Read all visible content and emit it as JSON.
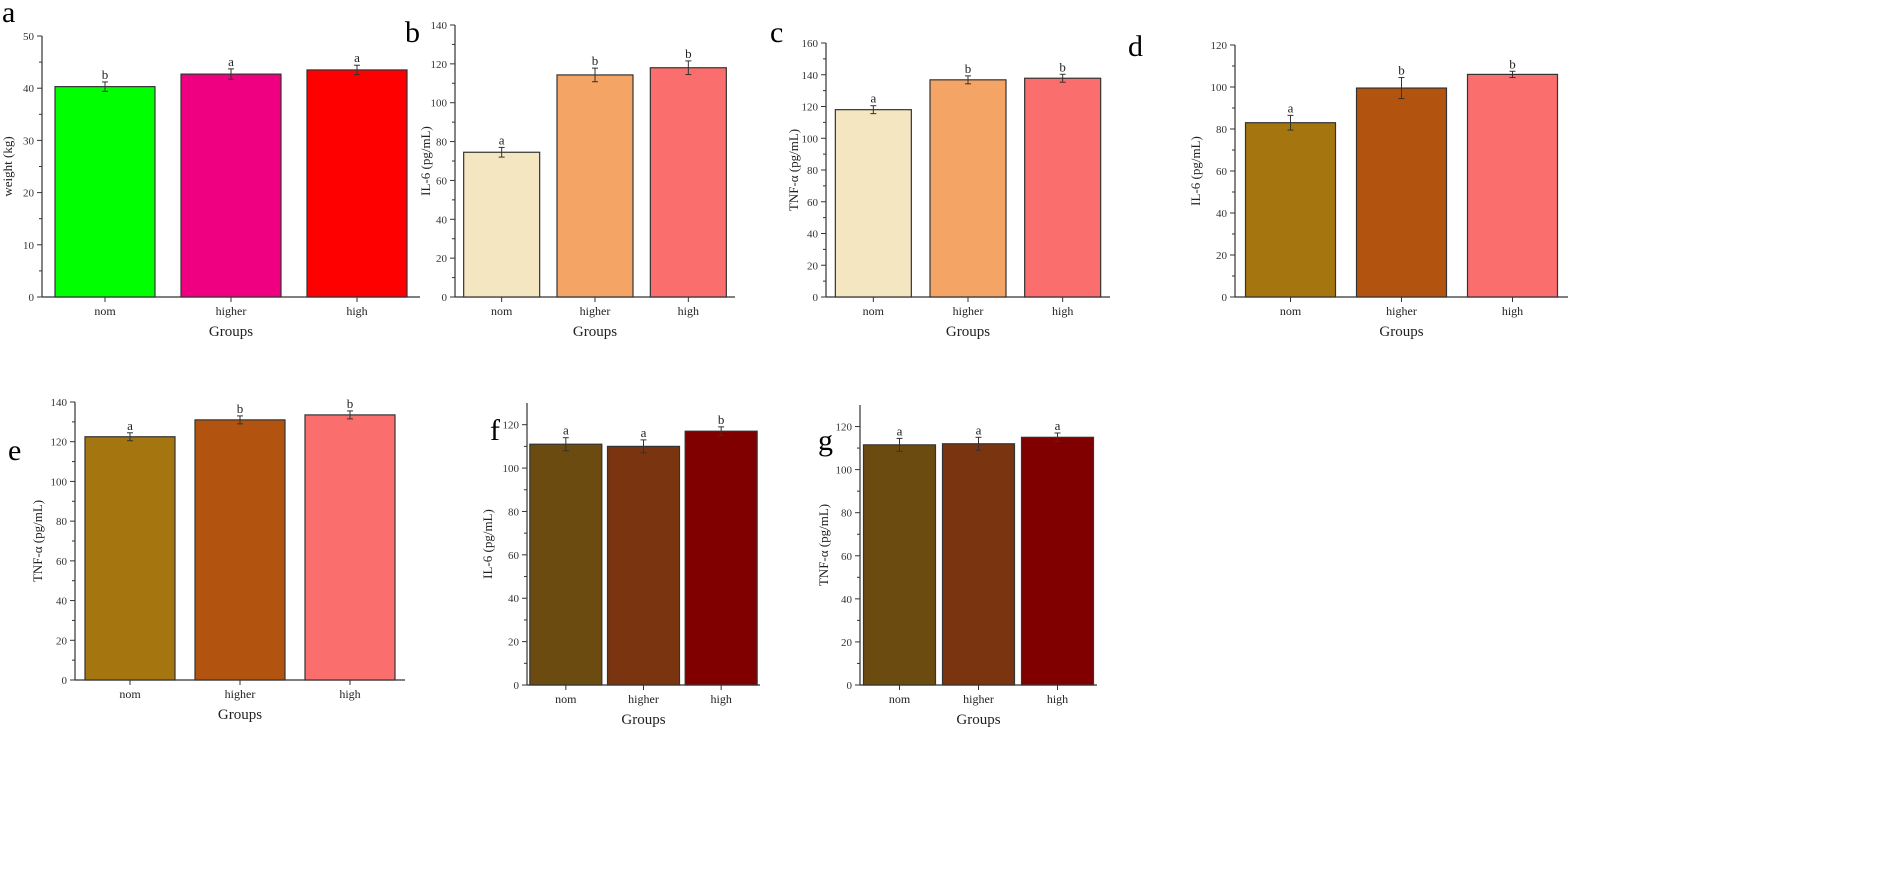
{
  "chart_data": [
    {
      "panel": "a",
      "type": "bar",
      "categories": [
        "nom",
        "higher",
        "high"
      ],
      "values": [
        40.3,
        42.7,
        43.5
      ],
      "errors": [
        0.9,
        1.0,
        0.9
      ],
      "significance": [
        "b",
        "a",
        "a"
      ],
      "colors": [
        "#00ff00",
        "#ee0080",
        "#ff0000"
      ],
      "xlabel": "Groups",
      "ylabel": "weight (kg)",
      "ylim": [
        0,
        50
      ],
      "yticks": [
        0,
        10,
        20,
        30,
        40,
        50
      ],
      "grid": false
    },
    {
      "panel": "b",
      "type": "bar",
      "categories": [
        "nom",
        "higher",
        "high"
      ],
      "values": [
        74.5,
        114.3,
        118
      ],
      "errors": [
        2.5,
        3.5,
        3.5
      ],
      "significance": [
        "a",
        "b",
        "b"
      ],
      "colors": [
        "#f5e6c2",
        "#f4a464",
        "#fa6e6e"
      ],
      "xlabel": "Groups",
      "ylabel": "IL-6 (pg/mL)",
      "ylim": [
        0,
        140
      ],
      "yticks": [
        0,
        20,
        40,
        60,
        80,
        100,
        120,
        140
      ],
      "grid": false
    },
    {
      "panel": "c",
      "type": "bar",
      "categories": [
        "nom",
        "higher",
        "high"
      ],
      "values": [
        118,
        136.8,
        137.8
      ],
      "errors": [
        2.5,
        2.5,
        2.5
      ],
      "significance": [
        "a",
        "b",
        "b"
      ],
      "colors": [
        "#f5e6c2",
        "#f4a464",
        "#fa6e6e"
      ],
      "xlabel": "Groups",
      "ylabel": "TNF-α (pg/mL)",
      "ylim": [
        0,
        160
      ],
      "yticks": [
        0,
        20,
        40,
        60,
        80,
        100,
        120,
        140,
        160
      ],
      "grid": false
    },
    {
      "panel": "d",
      "type": "bar",
      "categories": [
        "nom",
        "higher",
        "high"
      ],
      "values": [
        83,
        99.5,
        106
      ],
      "errors": [
        3.5,
        5,
        1.5
      ],
      "significance": [
        "a",
        "b",
        "b"
      ],
      "colors": [
        "#a5750f",
        "#b2540f",
        "#fa6e6e"
      ],
      "xlabel": "Groups",
      "ylabel": "IL-6 (pg/mL)",
      "ylim": [
        0,
        120
      ],
      "yticks": [
        0,
        20,
        40,
        60,
        80,
        100,
        120
      ],
      "grid": false
    },
    {
      "panel": "e",
      "type": "bar",
      "categories": [
        "nom",
        "higher",
        "high"
      ],
      "values": [
        122.5,
        131,
        133.5
      ],
      "errors": [
        2,
        2,
        2
      ],
      "significance": [
        "a",
        "b",
        "b"
      ],
      "colors": [
        "#a5750f",
        "#b2540f",
        "#fa6e6e"
      ],
      "xlabel": "Groups",
      "ylabel": "TNF-α (pg/mL)",
      "ylim": [
        0,
        140
      ],
      "yticks": [
        0,
        20,
        40,
        60,
        80,
        100,
        120,
        140
      ],
      "grid": false
    },
    {
      "panel": "f",
      "type": "bar",
      "categories": [
        "nom",
        "higher",
        "high"
      ],
      "values": [
        111,
        110,
        117
      ],
      "errors": [
        3,
        3,
        2
      ],
      "significance": [
        "a",
        "a",
        "b"
      ],
      "colors": [
        "#6b4b10",
        "#7a3510",
        "#800000"
      ],
      "xlabel": "Groups",
      "ylabel": "IL-6 (pg/mL)",
      "ylim": [
        0,
        130
      ],
      "yticks": [
        0,
        20,
        40,
        60,
        80,
        100,
        120
      ],
      "grid": false
    },
    {
      "panel": "g",
      "type": "bar",
      "categories": [
        "nom",
        "higher",
        "high"
      ],
      "values": [
        111.5,
        112,
        115
      ],
      "errors": [
        3,
        3,
        2
      ],
      "significance": [
        "a",
        "a",
        "a"
      ],
      "colors": [
        "#6b4b10",
        "#7a3510",
        "#800000"
      ],
      "xlabel": "Groups",
      "ylabel": "TNF-α (pg/mL)",
      "ylim": [
        0,
        130
      ],
      "yticks": [
        0,
        20,
        40,
        60,
        80,
        100,
        120
      ],
      "grid": false
    }
  ]
}
